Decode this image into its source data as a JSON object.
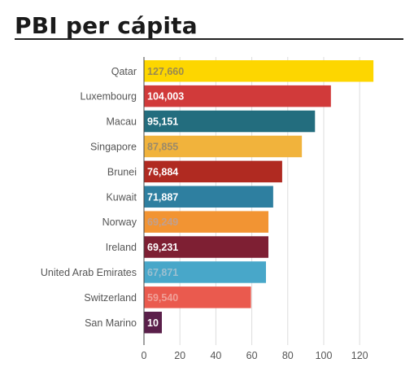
{
  "title": "PBI per cápita",
  "chart_data": {
    "type": "bar",
    "orientation": "horizontal",
    "categories": [
      "Qatar",
      "Luxembourg",
      "Macau",
      "Singapore",
      "Brunei",
      "Kuwait",
      "Norway",
      "Ireland",
      "United Arab Emirates",
      "Switzerland",
      "San Marino"
    ],
    "values": [
      127660,
      104003,
      95151,
      87855,
      76884,
      71887,
      69249,
      69231,
      67871,
      59540,
      10
    ],
    "data_labels": [
      "127,660",
      "104,003",
      "95,151",
      "87,855",
      "76,884",
      "71,887",
      "69,249",
      "69,231",
      "67,871",
      "59,540",
      "10"
    ],
    "bar_colors": [
      "#fdd600",
      "#d13a3a",
      "#236d7e",
      "#f1b33c",
      "#b02a21",
      "#2e7fa0",
      "#f29433",
      "#7e1f33",
      "#48a7c9",
      "#ea5a4e",
      "#5a1f4a"
    ],
    "label_colors": [
      "#9a8a50",
      "#ffffff",
      "#ffffff",
      "#9a8a6a",
      "#ffffff",
      "#ffffff",
      "#c0a090",
      "#ffffff",
      "#9cc0d0",
      "#f0a098",
      "#ffffff"
    ],
    "x_ticks": [
      0,
      20,
      40,
      60,
      80,
      100,
      120
    ],
    "x_tick_labels": [
      "0",
      "20",
      "40",
      "60",
      "80",
      "100",
      "120"
    ],
    "xlim": [
      0,
      130
    ],
    "grid": true
  }
}
